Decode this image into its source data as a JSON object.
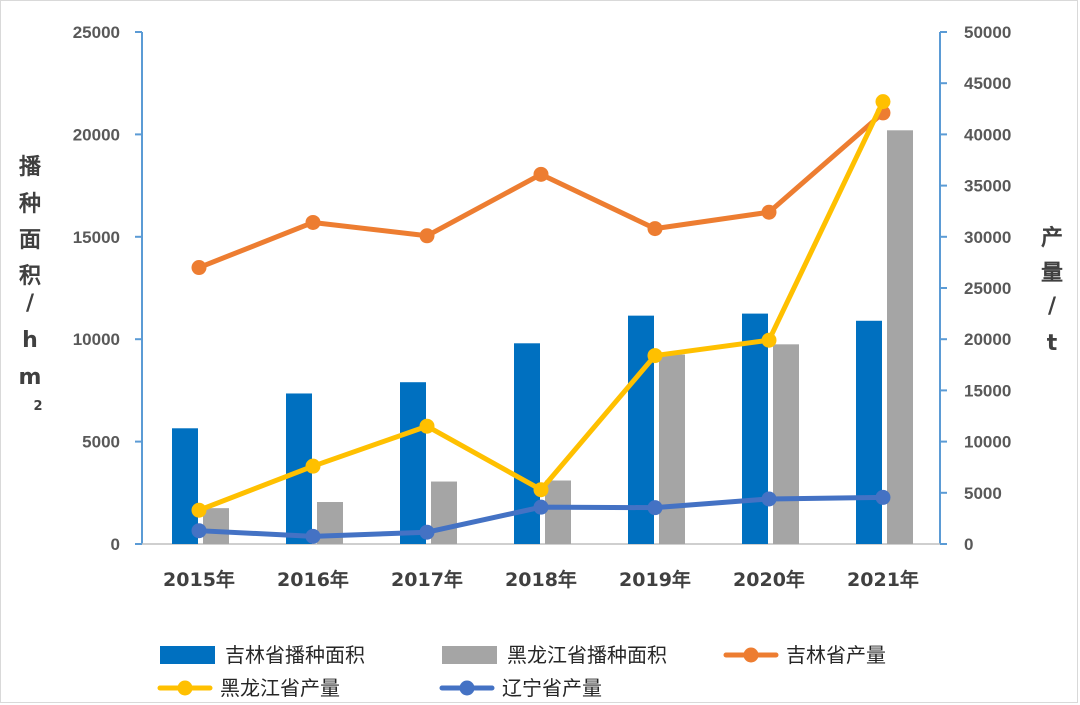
{
  "chart_data": {
    "type": "bar",
    "categories": [
      "2015年",
      "2016年",
      "2017年",
      "2018年",
      "2019年",
      "2020年",
      "2021年"
    ],
    "y_left": {
      "label_chars": [
        "播",
        "种",
        "面",
        "积",
        "/",
        "h",
        "m",
        "2"
      ],
      "range": [
        0,
        25000
      ],
      "ticks": [
        "0",
        "5000",
        "10000",
        "15000",
        "20000",
        "25000"
      ]
    },
    "y_right": {
      "label_chars": [
        "产",
        "量",
        "/",
        "t"
      ],
      "range": [
        0,
        50000
      ],
      "ticks": [
        "0",
        "5000",
        "10000",
        "15000",
        "20000",
        "25000",
        "30000",
        "35000",
        "40000",
        "45000",
        "50000"
      ]
    },
    "series": [
      {
        "name": "吉林省播种面积",
        "kind": "bar",
        "axis": "left",
        "color": "#0070c0",
        "values": [
          5650,
          7350,
          7900,
          9800,
          11150,
          11250,
          10900
        ]
      },
      {
        "name": "黑龙江省播种面积",
        "kind": "bar",
        "axis": "left",
        "color": "#a5a5a5",
        "values": [
          1750,
          2050,
          3050,
          3100,
          9250,
          9750,
          20200
        ]
      },
      {
        "name": "吉林省产量",
        "kind": "line",
        "axis": "right",
        "color": "#ed7d31",
        "values": [
          27000,
          31400,
          30100,
          36100,
          30800,
          32400,
          42100
        ]
      },
      {
        "name": "黑龙江省产量",
        "kind": "line",
        "axis": "right",
        "color": "#ffc000",
        "values": [
          3300,
          7600,
          11500,
          5300,
          18400,
          19900,
          43200
        ]
      },
      {
        "name": "辽宁省产量",
        "kind": "line",
        "axis": "right",
        "color": "#4472c4",
        "values": [
          1300,
          750,
          1150,
          3600,
          3550,
          4400,
          4550
        ]
      }
    ],
    "legend_position": "bottom",
    "grid": false
  }
}
